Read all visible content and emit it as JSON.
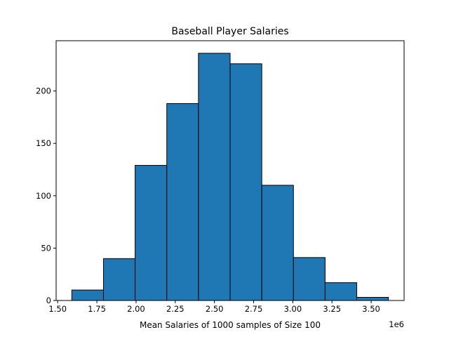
{
  "chart_data": {
    "type": "bar",
    "title": "Baseball Player Salaries",
    "xlabel": "Mean Salaries of 1000 samples of Size 100",
    "ylabel": "",
    "x_offset_text": "1e6",
    "bin_edges": [
      1590000,
      1792000,
      1994000,
      2196000,
      2398000,
      2600000,
      2802000,
      3004000,
      3206000,
      3408000,
      3610000
    ],
    "counts": [
      10,
      40,
      129,
      188,
      236,
      226,
      110,
      41,
      17,
      3
    ],
    "xlim": [
      1.49,
      3.71
    ],
    "ylim": [
      0,
      248
    ],
    "xticks": [
      1.5,
      1.75,
      2.0,
      2.25,
      2.5,
      2.75,
      3.0,
      3.25,
      3.5
    ],
    "xtick_labels": [
      "1.50",
      "1.75",
      "2.00",
      "2.25",
      "2.50",
      "2.75",
      "3.00",
      "3.25",
      "3.50"
    ],
    "yticks": [
      0,
      50,
      100,
      150,
      200
    ],
    "ytick_labels": [
      "0",
      "50",
      "100",
      "150",
      "200"
    ],
    "bar_color": "#1f77b4",
    "edge_color": "#000000",
    "grid": false,
    "legend": "none"
  }
}
